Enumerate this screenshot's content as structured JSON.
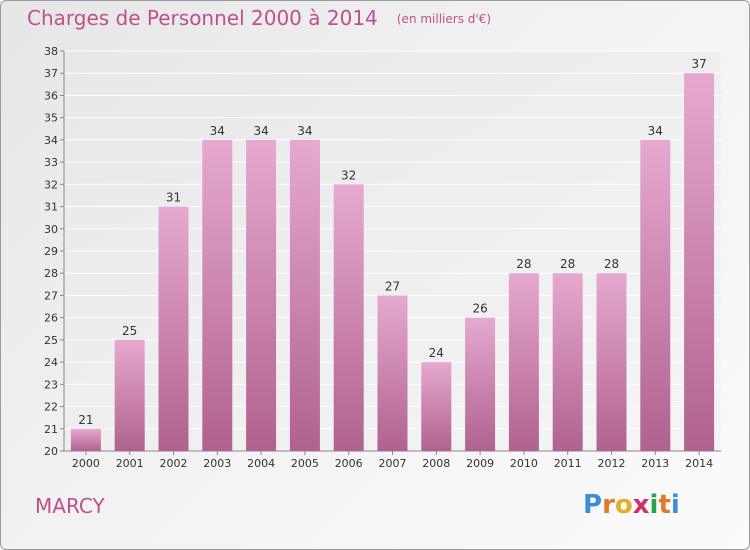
{
  "title": "Charges de Personnel 2000 à 2014",
  "subtitle": "(en milliers d'€)",
  "commune": "MARCY",
  "logo": "Proxiti",
  "colors": {
    "bar": "#d98fbd",
    "accent": "#c0508a"
  },
  "chart_data": {
    "type": "bar",
    "categories": [
      "2000",
      "2001",
      "2002",
      "2003",
      "2004",
      "2005",
      "2006",
      "2007",
      "2008",
      "2009",
      "2010",
      "2011",
      "2012",
      "2013",
      "2014"
    ],
    "values": [
      21,
      25,
      31,
      34,
      34,
      34,
      32,
      27,
      24,
      26,
      28,
      28,
      28,
      34,
      37
    ],
    "ylim": [
      20,
      38
    ],
    "yticks": [
      "20",
      "21",
      "22",
      "23",
      "24",
      "25",
      "26",
      "27",
      "28",
      "29",
      "30",
      "31",
      "32",
      "33",
      "34",
      "35",
      "36",
      "37",
      "38"
    ],
    "grid": true
  }
}
